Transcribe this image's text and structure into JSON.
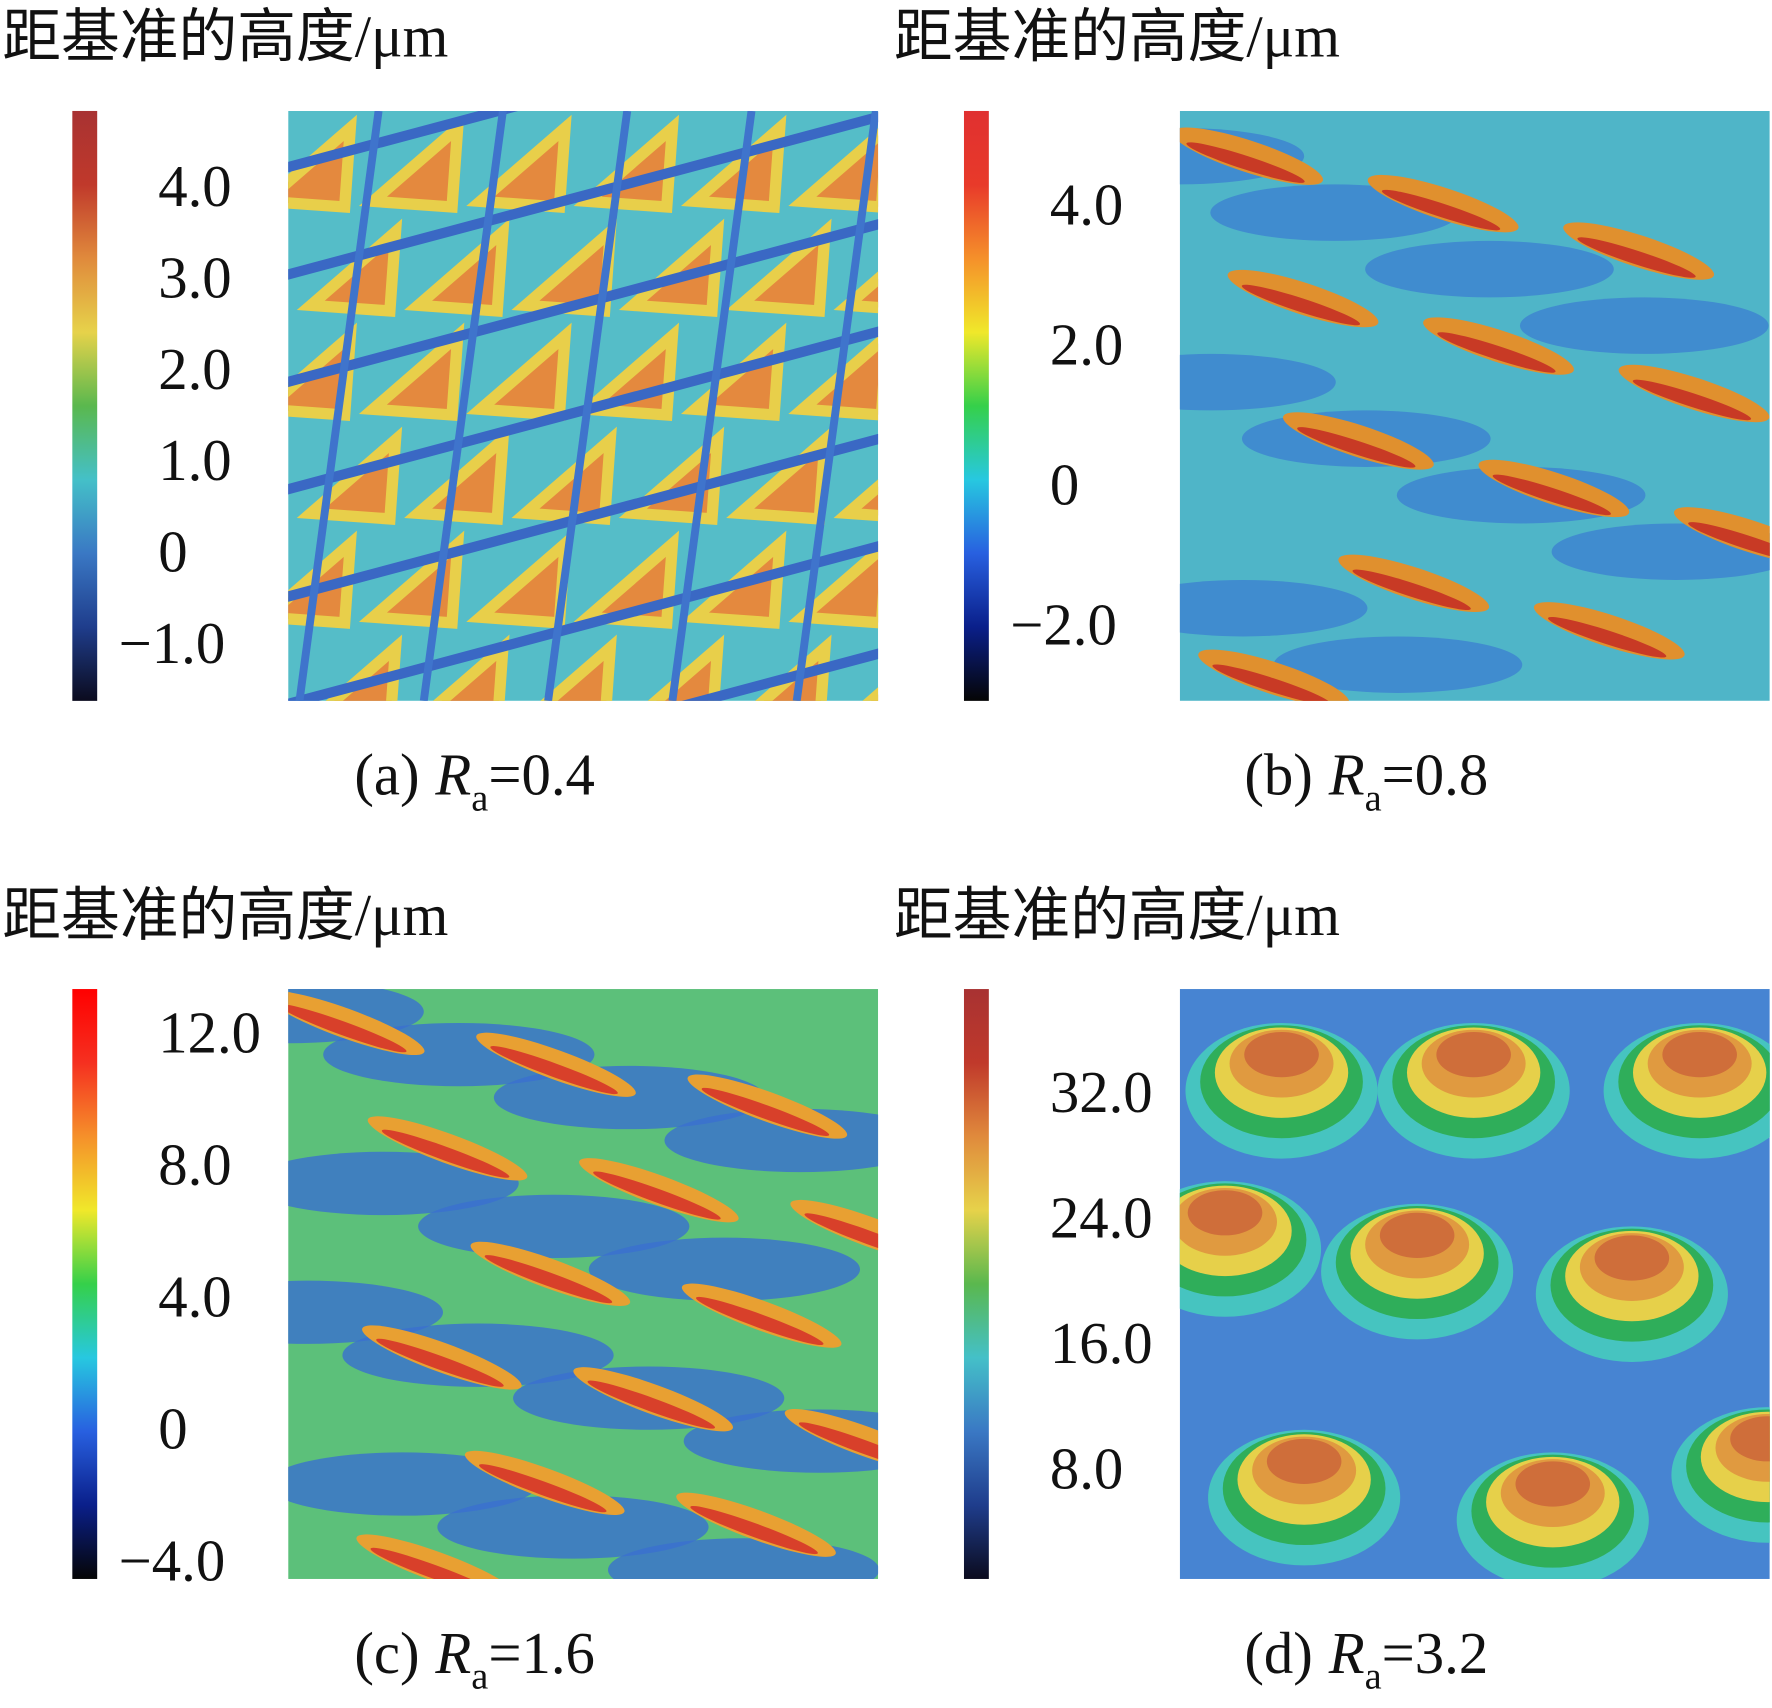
{
  "panels": [
    {
      "title": "距基准的高度/μm",
      "colorbar": {
        "lim": [
          -1.63,
          4.83
        ],
        "ticks": [
          {
            "value": 4,
            "label": "4.0"
          },
          {
            "value": 3,
            "label": "3.0"
          },
          {
            "value": 2,
            "label": "2.0"
          },
          {
            "value": 1,
            "label": "1.0"
          },
          0,
          {
            "value": -1,
            "label": "−1.0"
          }
        ],
        "colors": [
          "#0b0b1e",
          "#1f3d8c",
          "#3a78c4",
          "#44c0c8",
          "#5ab84e",
          "#e6d24a",
          "#e08a3c",
          "#c0392b",
          "#a83232"
        ]
      },
      "caption": {
        "label": "(a)",
        "symbol": "R",
        "subscript": "a",
        "value": "=0.4"
      }
    },
    {
      "title": "距基准的高度/μm",
      "colorbar": {
        "lim": [
          -3.08,
          5.34
        ],
        "ticks": [
          {
            "value": 4,
            "label": "4.0"
          },
          {
            "value": 2,
            "label": "2.0"
          },
          0,
          {
            "value": -2,
            "label": "−2.0"
          }
        ],
        "colors": [
          "#050505",
          "#0a1f8a",
          "#2860e0",
          "#27c8e0",
          "#35d04a",
          "#f0e82a",
          "#f5902a",
          "#e83a2a",
          "#e03030"
        ]
      },
      "caption": {
        "label": "(b)",
        "symbol": "R",
        "subscript": "a",
        "value": "=0.8"
      }
    },
    {
      "title": "距基准的高度/μm",
      "colorbar": {
        "lim": [
          -4.55,
          13.34
        ],
        "ticks": [
          {
            "value": 12,
            "label": "12.0"
          },
          {
            "value": 8,
            "label": "8.0"
          },
          {
            "value": 4,
            "label": "4.0"
          },
          0,
          {
            "value": -4,
            "label": "−4.0"
          }
        ],
        "colors": [
          "#050505",
          "#0a1f8a",
          "#2860e0",
          "#27c8e0",
          "#35d04a",
          "#f0e82a",
          "#f5902a",
          "#f53020",
          "#ff0000"
        ]
      },
      "caption": {
        "label": "(c)",
        "symbol": "R",
        "subscript": "a",
        "value": "=1.6"
      }
    },
    {
      "title": "距基准的高度/μm",
      "colorbar": {
        "lim": [
          1.0,
          38.6
        ],
        "ticks": [
          {
            "value": 32,
            "label": "32.0"
          },
          {
            "value": 24,
            "label": "24.0"
          },
          {
            "value": 16,
            "label": "16.0"
          },
          {
            "value": 8,
            "label": "8.0"
          }
        ],
        "colors": [
          "#0b0b1e",
          "#1f3d8c",
          "#3a78c4",
          "#44c0c8",
          "#5ab84e",
          "#e6d24a",
          "#e08a3c",
          "#c0392b",
          "#a83232"
        ]
      },
      "caption": {
        "label": "(d)",
        "symbol": "R",
        "subscript": "a",
        "value": "=3.2"
      }
    }
  ]
}
